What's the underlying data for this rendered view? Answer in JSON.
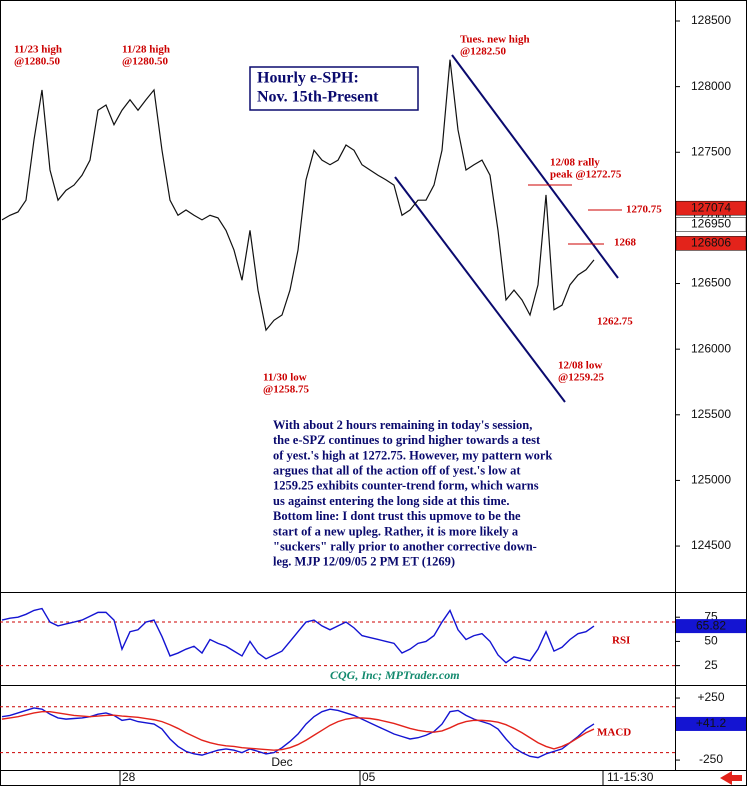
{
  "chart_data": [
    {
      "type": "line",
      "title": [
        "Hourly e-SPH:",
        "Nov. 15th-Present"
      ],
      "categories": [
        null,
        null,
        null,
        null,
        null,
        null,
        null,
        null,
        null,
        null,
        null,
        null,
        null,
        null,
        null,
        "28",
        null,
        null,
        null,
        null,
        null,
        null,
        null,
        null,
        null,
        null,
        null,
        null,
        null,
        null,
        null,
        null,
        null,
        null,
        null,
        "Dec",
        null,
        null,
        null,
        null,
        null,
        null,
        null,
        null,
        null,
        "05",
        null,
        null,
        null,
        null,
        null,
        null,
        null,
        null,
        null,
        null,
        null,
        null,
        null,
        null,
        null,
        null,
        null,
        null,
        null,
        null,
        null,
        null,
        null,
        null,
        null,
        null,
        null,
        null,
        "11-15:30"
      ],
      "series": [
        {
          "color": "#111111",
          "values": [
            126985,
            127020,
            127045,
            127135,
            127595,
            127975,
            127365,
            127135,
            127210,
            127250,
            127325,
            127440,
            127820,
            127860,
            127710,
            127820,
            127900,
            127820,
            127900,
            127975,
            127515,
            127135,
            127020,
            127060,
            127020,
            126985,
            127020,
            127000,
            126905,
            126755,
            126525,
            126905,
            126450,
            126145,
            126220,
            126260,
            126450,
            126755,
            127290,
            127515,
            127440,
            127405,
            127440,
            127555,
            127515,
            127405,
            127365,
            127325,
            127290,
            127250,
            127020,
            127060,
            127135,
            127135,
            127250,
            127515,
            128205,
            127670,
            127365,
            127405,
            127440,
            127325,
            126905,
            126375,
            126450,
            126375,
            126260,
            126490,
            127175,
            126300,
            126335,
            126490,
            126565,
            126605,
            126680
          ]
        }
      ],
      "ylim": [
        124150,
        128660
      ],
      "yticks": [
        124500,
        125000,
        125500,
        126000,
        126500,
        127000,
        127500,
        128000,
        128500
      ],
      "price_markers": [
        {
          "value": 127074,
          "color": "#e3231b"
        },
        {
          "value": 126950,
          "color": "#ffffff"
        },
        {
          "value": 126806,
          "color": "#e3231b"
        }
      ],
      "annotations": [
        {
          "lines": [
            "11/23 high",
            "@1280.50"
          ]
        },
        {
          "lines": [
            "11/28 high",
            "@1280.50"
          ]
        },
        {
          "lines": [
            "Tues. new high",
            "@1282.50"
          ]
        },
        {
          "lines": [
            "12/08 rally",
            "peak @1272.75"
          ]
        },
        {
          "lines": [
            "1270.75"
          ]
        },
        {
          "lines": [
            "1268"
          ]
        },
        {
          "lines": [
            "1262.75"
          ]
        },
        {
          "lines": [
            "12/08 low",
            "@1259.25"
          ]
        },
        {
          "lines": [
            "11/30 low",
            "@1258.75"
          ]
        }
      ],
      "commentary": [
        "With about 2 hours remaining in today's session,",
        "the e-SPZ continues to grind higher towards a test",
        "of yest.'s high at 1272.75. However, my pattern work",
        "argues that all of the action off of yest.'s low at",
        "1259.25 exhibits counter-trend form, which warns",
        "us against entering the long side at this time.",
        "Bottom line: I dont trust this upmove to be the",
        "start of a new upleg. Rather, it is more likely a",
        "\"suckers\" rally prior to another corrective down-",
        "leg.  MJP  12/09/05 2 PM ET (1269)"
      ],
      "credit": "CQG, Inc; MPTrader.com"
    },
    {
      "type": "line",
      "label": "RSI",
      "series": [
        {
          "color": "#1414d2",
          "values": [
            72,
            74,
            75,
            78,
            82,
            84,
            70,
            66,
            68,
            70,
            72,
            76,
            80,
            80,
            72,
            42,
            60,
            62,
            70,
            72,
            55,
            35,
            38,
            42,
            45,
            38,
            52,
            48,
            45,
            40,
            35,
            50,
            38,
            32,
            36,
            40,
            50,
            60,
            70,
            72,
            66,
            62,
            66,
            70,
            64,
            56,
            54,
            52,
            50,
            48,
            38,
            42,
            48,
            50,
            56,
            70,
            82,
            62,
            52,
            56,
            58,
            50,
            36,
            28,
            34,
            32,
            30,
            42,
            60,
            40,
            44,
            52,
            58,
            60,
            65.82
          ]
        }
      ],
      "ylim": [
        5,
        100
      ],
      "yticks": [
        25,
        50,
        75
      ],
      "ref_lines": [
        70,
        25
      ]
    },
    {
      "type": "line",
      "label": "MACD",
      "series": [
        {
          "color": "#1414d2",
          "values": [
            100,
            110,
            130,
            150,
            170,
            160,
            120,
            90,
            80,
            85,
            90,
            100,
            120,
            130,
            110,
            70,
            80,
            60,
            50,
            40,
            0,
            -80,
            -140,
            -180,
            -200,
            -210,
            -190,
            -170,
            -160,
            -170,
            -190,
            -160,
            -180,
            -200,
            -190,
            -150,
            -100,
            -40,
            40,
            100,
            140,
            160,
            150,
            130,
            110,
            80,
            50,
            20,
            -10,
            -40,
            -60,
            -80,
            -70,
            -50,
            -20,
            40,
            140,
            150,
            110,
            80,
            60,
            40,
            0,
            -80,
            -150,
            -190,
            -220,
            -230,
            -200,
            -180,
            -160,
            -110,
            -60,
            0,
            41.2
          ],
          "value_labels": [
            null,
            null,
            null,
            null,
            null,
            null,
            null,
            null,
            null,
            null,
            null,
            null,
            null,
            null,
            null,
            null,
            null,
            null,
            null,
            null,
            null,
            null,
            null,
            null,
            null,
            null,
            null,
            null,
            null,
            null,
            null,
            null,
            null,
            null,
            null,
            null,
            null,
            null,
            null,
            null,
            null,
            null,
            null,
            null,
            null,
            null,
            null,
            null,
            null,
            null,
            null,
            null,
            null,
            null,
            null,
            null,
            null,
            null,
            null,
            null,
            null,
            null,
            null,
            null,
            null,
            null,
            null,
            null,
            null,
            null,
            null,
            null,
            null,
            null,
            "+41.2"
          ]
        },
        {
          "color": "#e3231b",
          "values": [
            80,
            90,
            100,
            115,
            130,
            140,
            140,
            130,
            120,
            110,
            105,
            100,
            105,
            110,
            112,
            105,
            100,
            95,
            85,
            75,
            60,
            35,
            5,
            -30,
            -60,
            -90,
            -110,
            -125,
            -135,
            -140,
            -150,
            -155,
            -160,
            -165,
            -170,
            -165,
            -150,
            -125,
            -90,
            -50,
            -10,
            30,
            60,
            80,
            90,
            90,
            85,
            75,
            60,
            45,
            25,
            5,
            -10,
            -20,
            -25,
            -15,
            10,
            40,
            60,
            70,
            70,
            65,
            55,
            35,
            5,
            -30,
            -70,
            -110,
            -140,
            -160,
            -140,
            -110,
            -70,
            -30,
            0
          ]
        }
      ],
      "ylim": [
        -330,
        347
      ],
      "yticks": [
        {
          "value": 250,
          "label": "+250"
        },
        -250
      ],
      "ref_lines": [
        180,
        -190
      ]
    }
  ]
}
